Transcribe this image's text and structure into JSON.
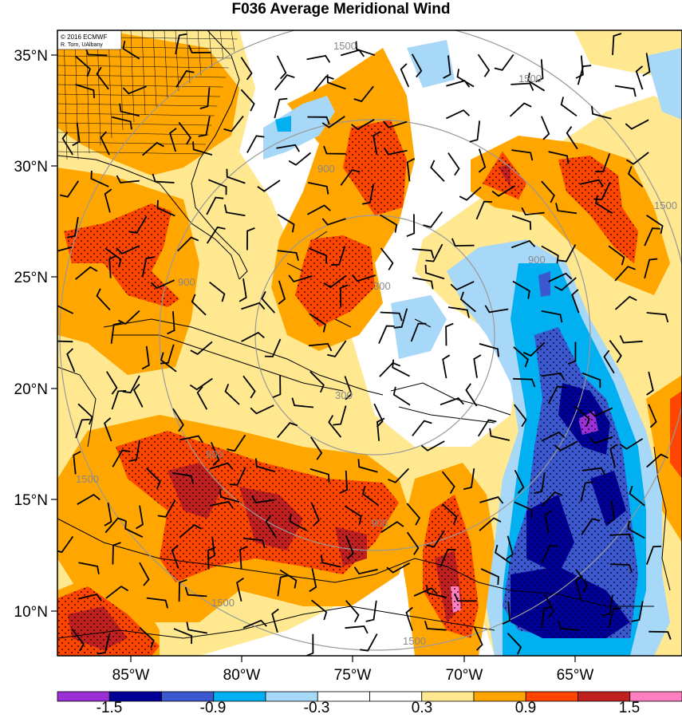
{
  "title": "F036 Average Meridional Wind",
  "credit": {
    "line1": "© 2016 ECMWF",
    "line2": "R. Torn, UAlbany"
  },
  "axes": {
    "lat_labels": [
      "35°N",
      "30°N",
      "25°N",
      "20°N",
      "15°N",
      "10°N"
    ],
    "lon_labels": [
      "85°W",
      "80°W",
      "75°W",
      "70°W",
      "65°W"
    ]
  },
  "range_rings": {
    "labels": [
      "300",
      "300",
      "900",
      "900",
      "900",
      "900",
      "900",
      "1500",
      "1500",
      "1500",
      "1500",
      "1500",
      "1500"
    ]
  },
  "colorbar": {
    "labels": [
      "-1.5",
      "-0.9",
      "-0.3",
      "0.3",
      "0.9",
      "1.5"
    ],
    "colors": [
      "#9b30d8",
      "#000099",
      "#3c58d0",
      "#00b0f0",
      "#a8d8f8",
      "#ffffff",
      "#ffffff",
      "#ffe890",
      "#ffa600",
      "#ff4500",
      "#c02020",
      "#ff80c0"
    ]
  },
  "fill_colors": {
    "light_yellow": "#ffe890",
    "orange": "#ffa600",
    "red": "#ff4500",
    "dark_red": "#c02020",
    "light_blue": "#a8d8f8",
    "cyan": "#00b0f0",
    "blue": "#3c58d0",
    "navy": "#000099",
    "purple": "#9b30d8",
    "pink": "#ff80c0"
  }
}
